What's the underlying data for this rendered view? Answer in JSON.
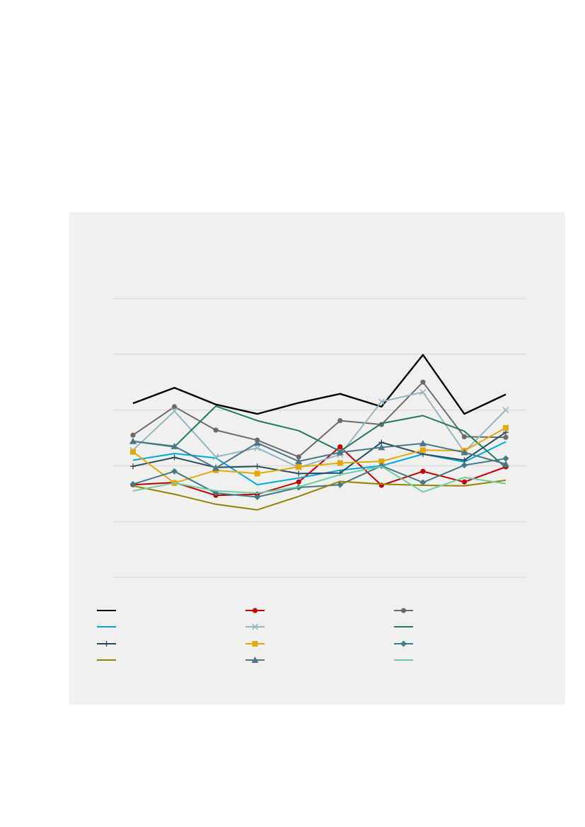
{
  "chart_data": {
    "type": "line",
    "title": "",
    "xlabel": "",
    "ylabel": "",
    "x": [
      1,
      2,
      3,
      4,
      5,
      6,
      7,
      8,
      9,
      10
    ],
    "ylim": [
      0,
      5
    ],
    "yticks": [
      0,
      1,
      2,
      3,
      4,
      5
    ],
    "grid": true,
    "legend_position": "bottom",
    "series": [
      {
        "color": "#000000",
        "marker": "none",
        "values": [
          3.12,
          3.4,
          3.1,
          2.93,
          3.13,
          3.29,
          3.06,
          3.99,
          2.93,
          3.28
        ]
      },
      {
        "color": "#c00000",
        "marker": "circle",
        "values": [
          1.66,
          1.7,
          1.47,
          1.49,
          1.71,
          2.34,
          1.65,
          1.9,
          1.71,
          1.98
        ]
      },
      {
        "color": "#6b6b6b",
        "marker": "circle",
        "values": [
          2.55,
          3.06,
          2.64,
          2.46,
          2.16,
          2.81,
          2.74,
          3.5,
          2.52,
          2.51
        ]
      },
      {
        "color": "#00a6e0",
        "marker": "none",
        "values": [
          2.1,
          2.22,
          2.14,
          1.66,
          1.78,
          1.92,
          2.0,
          2.21,
          2.07,
          2.43
        ]
      },
      {
        "color": "#92b6c4",
        "marker": "x",
        "values": [
          2.28,
          2.98,
          2.16,
          2.32,
          1.97,
          2.2,
          3.15,
          3.32,
          2.25,
          3.0
        ]
      },
      {
        "color": "#237a5a",
        "marker": "none",
        "values": [
          2.44,
          2.34,
          3.07,
          2.81,
          2.63,
          2.26,
          2.76,
          2.9,
          2.62,
          1.97
        ]
      },
      {
        "color": "#284b5e",
        "marker": "plus",
        "values": [
          1.99,
          2.15,
          1.97,
          1.99,
          1.86,
          1.87,
          2.42,
          2.21,
          2.1,
          2.6
        ]
      },
      {
        "color": "#e3a80e",
        "marker": "square",
        "values": [
          2.25,
          1.69,
          1.92,
          1.86,
          1.98,
          2.05,
          2.08,
          2.28,
          2.27,
          2.68
        ]
      },
      {
        "color": "#417a88",
        "marker": "diamond",
        "values": [
          1.67,
          1.9,
          1.51,
          1.44,
          1.61,
          1.66,
          2.0,
          1.7,
          2.01,
          2.13
        ]
      },
      {
        "color": "#958106",
        "marker": "none",
        "values": [
          1.64,
          1.49,
          1.31,
          1.21,
          1.45,
          1.72,
          1.67,
          1.65,
          1.64,
          1.74
        ]
      },
      {
        "color": "#4a7889",
        "marker": "triangle",
        "values": [
          2.44,
          2.35,
          1.96,
          2.41,
          2.08,
          2.24,
          2.33,
          2.4,
          2.24,
          2.03
        ]
      },
      {
        "color": "#73cba6",
        "marker": "none",
        "values": [
          1.55,
          1.69,
          1.55,
          1.51,
          1.62,
          1.84,
          1.99,
          1.53,
          1.79,
          1.68
        ]
      }
    ]
  }
}
